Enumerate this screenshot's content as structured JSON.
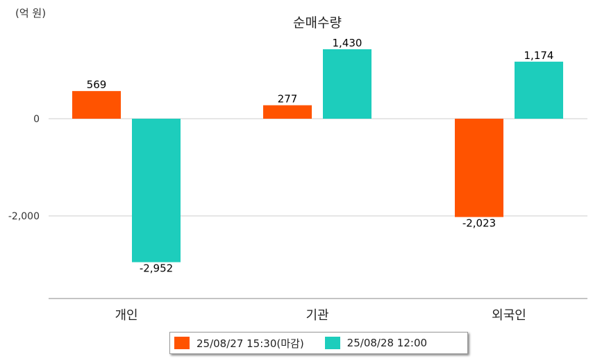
{
  "chart_data": {
    "type": "bar",
    "title": "순매수량",
    "unit": "(억 원)",
    "categories": [
      "개인",
      "기관",
      "외국인"
    ],
    "series": [
      {
        "name": "25/08/27 15:30(마감)",
        "color": "#FF5300",
        "values": [
          569,
          277,
          -2023
        ],
        "labels": [
          "569",
          "277",
          "-2,023"
        ]
      },
      {
        "name": "25/08/28 12:00",
        "color": "#1DCDBC",
        "values": [
          -2952,
          1430,
          1174
        ],
        "labels": [
          "-2,952",
          "1,430",
          "1,174"
        ]
      }
    ],
    "yticks": [
      0,
      -2000
    ],
    "ytick_labels": [
      "0",
      "-2,000"
    ],
    "ylim": [
      -3700,
      1430
    ],
    "grid": true,
    "legend_position": "bottom"
  }
}
